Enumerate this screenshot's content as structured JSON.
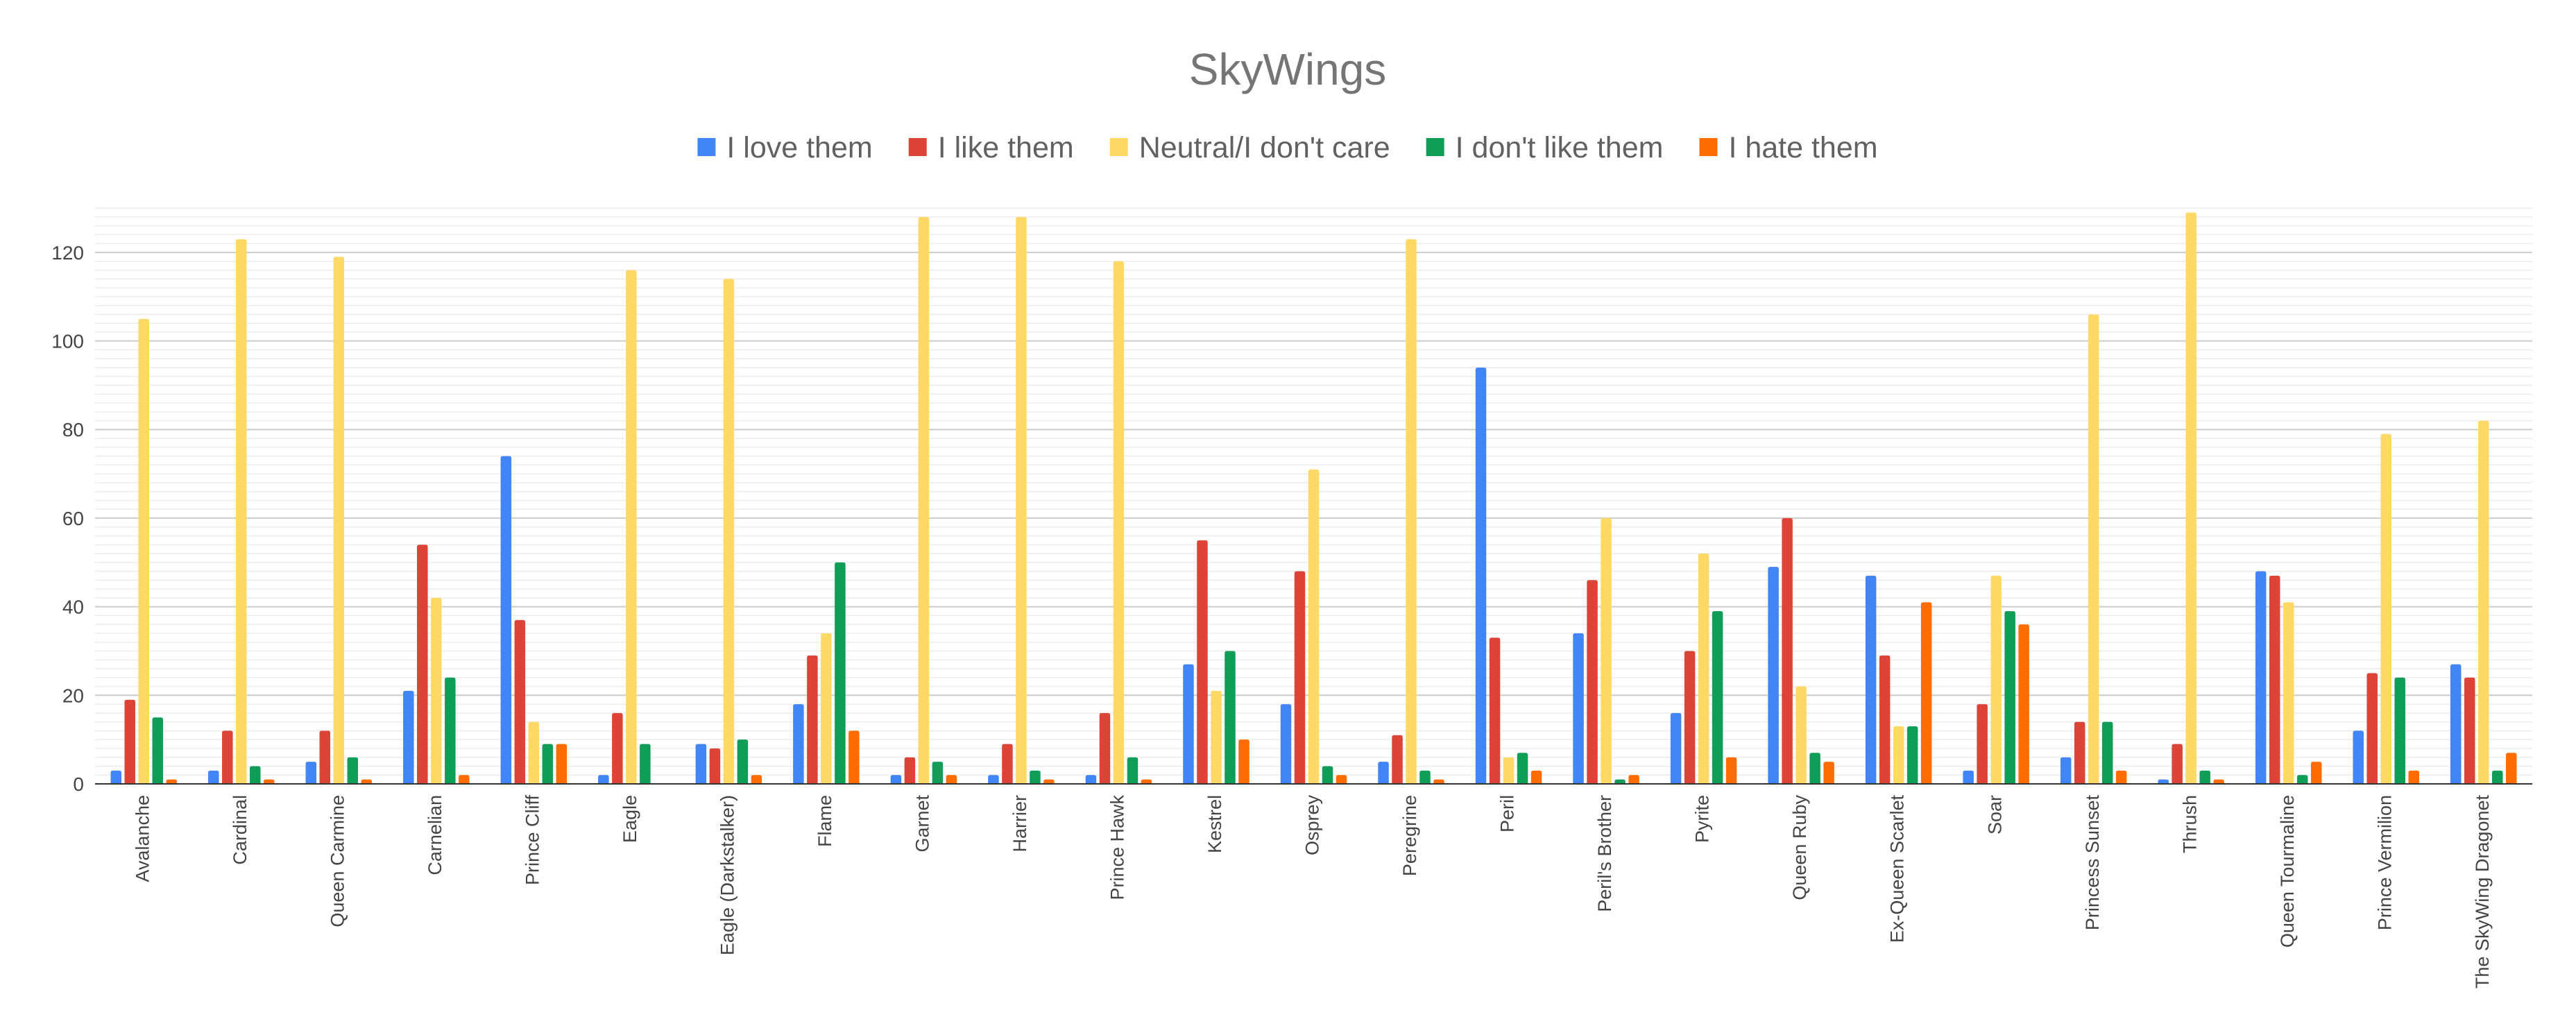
{
  "chart_data": {
    "type": "bar",
    "title": "SkyWings",
    "xlabel": "",
    "ylabel": "",
    "ylim": [
      0,
      130
    ],
    "yticks": [
      0,
      20,
      40,
      60,
      80,
      100,
      120
    ],
    "grid": true,
    "legend_position": "top",
    "categories": [
      "Avalanche",
      "Cardinal",
      "Queen Carmine",
      "Carnelian",
      "Prince Cliff",
      "Eagle",
      "Eagle (Darkstalker)",
      "Flame",
      "Garnet",
      "Harrier",
      "Prince Hawk",
      "Kestrel",
      "Osprey",
      "Peregrine",
      "Peril",
      "Peril's Brother",
      "Pyrite",
      "Queen Ruby",
      "Ex-Queen Scarlet",
      "Soar",
      "Princess Sunset",
      "Thrush",
      "Queen Tourmaline",
      "Prince Vermilion",
      "The SkyWing Dragonet"
    ],
    "series": [
      {
        "name": "I love them",
        "color": "#4285F4",
        "values": [
          3,
          3,
          5,
          21,
          74,
          2,
          9,
          18,
          2,
          2,
          2,
          27,
          18,
          5,
          94,
          34,
          16,
          49,
          47,
          3,
          6,
          1,
          48,
          12,
          27
        ]
      },
      {
        "name": "I like them",
        "color": "#DB4437",
        "values": [
          19,
          12,
          12,
          54,
          37,
          16,
          8,
          29,
          6,
          9,
          16,
          55,
          48,
          11,
          33,
          46,
          30,
          60,
          29,
          18,
          14,
          9,
          47,
          25,
          24
        ]
      },
      {
        "name": "Neutral/I don't care",
        "color": "#FFD966",
        "values": [
          105,
          123,
          119,
          42,
          14,
          116,
          114,
          34,
          128,
          128,
          118,
          21,
          71,
          123,
          6,
          60,
          52,
          22,
          13,
          47,
          106,
          129,
          41,
          79,
          82
        ]
      },
      {
        "name": "I don't like them",
        "color": "#0F9D58",
        "values": [
          15,
          4,
          6,
          24,
          9,
          9,
          10,
          50,
          5,
          3,
          6,
          30,
          4,
          3,
          7,
          1,
          39,
          7,
          13,
          39,
          14,
          3,
          2,
          24,
          3
        ]
      },
      {
        "name": "I hate them",
        "color": "#FF6D00",
        "values": [
          1,
          1,
          1,
          2,
          9,
          0,
          2,
          12,
          2,
          1,
          1,
          10,
          2,
          1,
          3,
          2,
          6,
          5,
          41,
          36,
          3,
          1,
          5,
          3,
          7
        ]
      }
    ]
  }
}
